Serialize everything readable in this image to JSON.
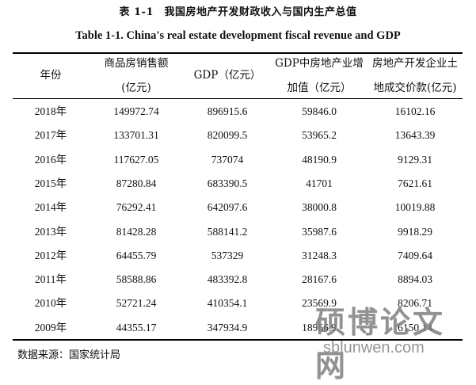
{
  "caption": {
    "cn": "表 1-1　我国房地产开发财政收入与国内生产总值",
    "en": "Table 1-1. China's real estate development fiscal revenue and GDP"
  },
  "table": {
    "headers": [
      [
        "年份"
      ],
      [
        "商品房销售额",
        "(亿元)"
      ],
      [
        "GDP（亿元）"
      ],
      [
        "GDP中房地产业增",
        "加值（亿元）"
      ],
      [
        "房地产开发企业土",
        "地成交价款(亿元)"
      ]
    ],
    "rows": [
      [
        "2018年",
        "149972.74",
        "896915.6",
        "59846.0",
        "16102.16"
      ],
      [
        "2017年",
        "133701.31",
        "820099.5",
        "53965.2",
        "13643.39"
      ],
      [
        "2016年",
        "117627.05",
        "737074",
        "48190.9",
        "9129.31"
      ],
      [
        "2015年",
        "87280.84",
        "683390.5",
        "41701",
        "7621.61"
      ],
      [
        "2014年",
        "76292.41",
        "642097.6",
        "38000.8",
        "10019.88"
      ],
      [
        "2013年",
        "81428.28",
        "588141.2",
        "35987.6",
        "9918.29"
      ],
      [
        "2012年",
        "64455.79",
        "537329",
        "31248.3",
        "7409.64"
      ],
      [
        "2011年",
        "58588.86",
        "483392.8",
        "28167.6",
        "8894.03"
      ],
      [
        "2010年",
        "52721.24",
        "410354.1",
        "23569.9",
        "8206.71"
      ],
      [
        "2009年",
        "44355.17",
        "347934.9",
        "18966.9",
        "6150.14"
      ]
    ]
  },
  "source_note": "数据来源：国家统计局",
  "watermark": {
    "cn": "硕博论文网",
    "en": "sblunwen.com"
  }
}
